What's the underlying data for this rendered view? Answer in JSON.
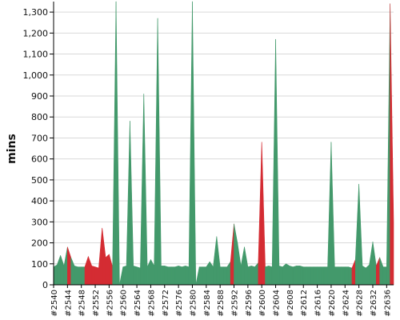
{
  "chart_data": {
    "type": "area",
    "title": "",
    "xlabel": "",
    "ylabel": "mins",
    "ylim": [
      0,
      1350
    ],
    "yticks": [
      0,
      100,
      200,
      300,
      400,
      500,
      600,
      700,
      800,
      900,
      1000,
      1100,
      1200,
      1300
    ],
    "ytick_labels": [
      "0",
      "100",
      "200",
      "300",
      "400",
      "500",
      "600",
      "700",
      "800",
      "900",
      "1,000",
      "1,100",
      "1,200",
      "1,300"
    ],
    "grid": true,
    "legend": "none",
    "categories": [
      "#2540",
      "#2541",
      "#2542",
      "#2543",
      "#2544",
      "#2545",
      "#2546",
      "#2547",
      "#2548",
      "#2549",
      "#2550",
      "#2551",
      "#2552",
      "#2553",
      "#2554",
      "#2555",
      "#2556",
      "#2557",
      "#2558",
      "#2559",
      "#2560",
      "#2561",
      "#2562",
      "#2563",
      "#2564",
      "#2565",
      "#2566",
      "#2567",
      "#2568",
      "#2569",
      "#2570",
      "#2571",
      "#2572",
      "#2573",
      "#2574",
      "#2575",
      "#2576",
      "#2577",
      "#2578",
      "#2579",
      "#2580",
      "#2581",
      "#2582",
      "#2583",
      "#2584",
      "#2585",
      "#2586",
      "#2587",
      "#2588",
      "#2589",
      "#2590",
      "#2591",
      "#2592",
      "#2593",
      "#2594",
      "#2595",
      "#2596",
      "#2597",
      "#2598",
      "#2599",
      "#2600",
      "#2601",
      "#2602",
      "#2603",
      "#2604",
      "#2605",
      "#2606",
      "#2607",
      "#2608",
      "#2609",
      "#2610",
      "#2611",
      "#2612",
      "#2613",
      "#2614",
      "#2615",
      "#2616",
      "#2617",
      "#2618",
      "#2619",
      "#2620",
      "#2621",
      "#2622",
      "#2623",
      "#2624",
      "#2625",
      "#2626",
      "#2627",
      "#2628",
      "#2629",
      "#2630",
      "#2631",
      "#2632",
      "#2633",
      "#2634",
      "#2635",
      "#2636",
      "#2637",
      "#2638"
    ],
    "tick_labels": [
      "#2540",
      "#2544",
      "#2548",
      "#2552",
      "#2556",
      "#2560",
      "#2564",
      "#2568",
      "#2572",
      "#2576",
      "#2580",
      "#2584",
      "#2588",
      "#2592",
      "#2596",
      "#2600",
      "#2604",
      "#2608",
      "#2612",
      "#2616",
      "#2620",
      "#2624",
      "#2628",
      "#2632",
      "#2636"
    ],
    "values": [
      85,
      95,
      140,
      90,
      180,
      130,
      90,
      85,
      85,
      85,
      135,
      90,
      85,
      80,
      270,
      130,
      145,
      85,
      1400,
      0,
      85,
      90,
      780,
      90,
      85,
      80,
      910,
      85,
      120,
      90,
      1270,
      90,
      90,
      85,
      85,
      85,
      90,
      85,
      90,
      85,
      1400,
      0,
      85,
      85,
      85,
      110,
      85,
      230,
      85,
      85,
      85,
      110,
      290,
      200,
      90,
      180,
      85,
      90,
      85,
      105,
      680,
      85,
      90,
      85,
      1170,
      90,
      85,
      100,
      90,
      85,
      90,
      90,
      85,
      85,
      85,
      85,
      85,
      85,
      85,
      85,
      680,
      85,
      85,
      85,
      85,
      85,
      80,
      120,
      480,
      90,
      80,
      95,
      205,
      90,
      130,
      85,
      85,
      1340,
      300
    ],
    "statuses": [
      "success",
      "success",
      "success",
      "success",
      "success",
      "failure",
      "success",
      "success",
      "success",
      "success",
      "failure",
      "failure",
      "failure",
      "failure",
      "failure",
      "failure",
      "failure",
      "failure",
      "success",
      "success",
      "success",
      "success",
      "success",
      "success",
      "success",
      "success",
      "success",
      "success",
      "success",
      "success",
      "success",
      "success",
      "success",
      "success",
      "success",
      "success",
      "success",
      "success",
      "success",
      "success",
      "success",
      "success",
      "success",
      "success",
      "success",
      "success",
      "success",
      "success",
      "success",
      "success",
      "success",
      "success",
      "failure",
      "success",
      "success",
      "success",
      "success",
      "success",
      "success",
      "success",
      "failure",
      "failure",
      "success",
      "success",
      "success",
      "success",
      "success",
      "success",
      "success",
      "success",
      "success",
      "success",
      "success",
      "success",
      "success",
      "success",
      "success",
      "success",
      "success",
      "success",
      "success",
      "success",
      "success",
      "success",
      "success",
      "success",
      "success",
      "failure",
      "success",
      "success",
      "success",
      "success",
      "success",
      "success",
      "failure",
      "success",
      "success",
      "success",
      "failure"
    ],
    "colors": {
      "success": "#43996b",
      "failure": "#d42c33",
      "grid": "#d9d9d9",
      "axis": "#000000"
    }
  }
}
